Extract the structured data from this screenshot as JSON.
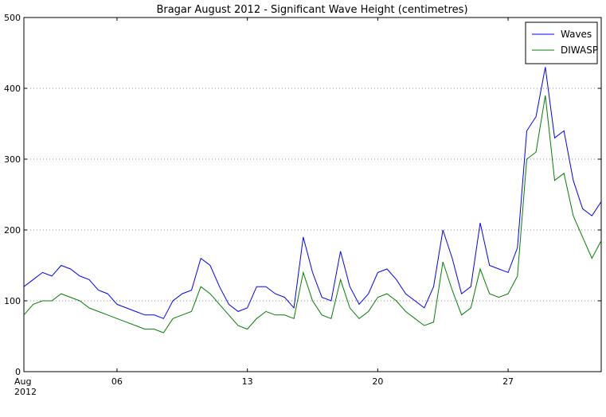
{
  "chart_data": {
    "type": "line",
    "title": "Bragar August 2012 - Significant Wave Height (centimetres)",
    "x": [
      1,
      1.5,
      2,
      2.5,
      3,
      3.5,
      4,
      4.5,
      5,
      5.5,
      6,
      6.5,
      7,
      7.5,
      8,
      8.5,
      9,
      9.5,
      10,
      10.5,
      11,
      11.5,
      12,
      12.5,
      13,
      13.5,
      14,
      14.5,
      15,
      15.5,
      16,
      16.5,
      17,
      17.5,
      18,
      18.5,
      19,
      19.5,
      20,
      20.5,
      21,
      21.5,
      22,
      22.5,
      23,
      23.5,
      24,
      24.5,
      25,
      25.5,
      26,
      26.5,
      27,
      27.5,
      28,
      28.5,
      29,
      29.5,
      30,
      30.5,
      31,
      31.5,
      32
    ],
    "series": [
      {
        "name": "Waves",
        "color": "#0000ff",
        "values": [
          120,
          130,
          140,
          135,
          150,
          145,
          135,
          130,
          115,
          110,
          95,
          90,
          85,
          80,
          80,
          75,
          100,
          110,
          115,
          160,
          150,
          120,
          95,
          85,
          90,
          120,
          120,
          110,
          105,
          90,
          190,
          140,
          105,
          100,
          170,
          120,
          95,
          110,
          140,
          145,
          130,
          110,
          100,
          90,
          120,
          200,
          160,
          110,
          120,
          210,
          150,
          145,
          140,
          175,
          340,
          360,
          430,
          330,
          340,
          270,
          230,
          220,
          240
        ]
      },
      {
        "name": "DIWASP",
        "color": "#008000",
        "values": [
          80,
          95,
          100,
          100,
          110,
          105,
          100,
          90,
          85,
          80,
          75,
          70,
          65,
          60,
          60,
          55,
          75,
          80,
          85,
          120,
          110,
          95,
          80,
          65,
          60,
          75,
          85,
          80,
          80,
          75,
          140,
          100,
          80,
          75,
          130,
          90,
          75,
          85,
          105,
          110,
          100,
          85,
          75,
          65,
          70,
          155,
          115,
          80,
          90,
          145,
          110,
          105,
          110,
          135,
          300,
          310,
          390,
          270,
          280,
          220,
          190,
          160,
          185
        ]
      }
    ],
    "xlim": [
      1,
      32
    ],
    "xticks": [
      {
        "value": 1,
        "label": "Aug\n2012"
      },
      {
        "value": 6,
        "label": "06"
      },
      {
        "value": 13,
        "label": "13"
      },
      {
        "value": 20,
        "label": "20"
      },
      {
        "value": 27,
        "label": "27"
      }
    ],
    "ylim": [
      0,
      500
    ],
    "yticks": [
      0,
      100,
      200,
      300,
      400,
      500
    ],
    "grid": true,
    "legend": "upper right"
  }
}
